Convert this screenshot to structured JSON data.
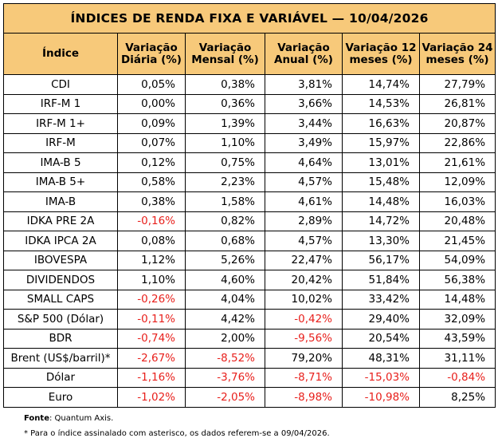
{
  "title": "ÍNDICES DE RENDA FIXA E VARIÁVEL — 10/04/2026",
  "columns": [
    "Índice",
    "Variação Diária (%)",
    "Variação Mensal (%)",
    "Variação Anual (%)",
    "Variação 12 meses (%)",
    "Variação 24 meses (%)"
  ],
  "rows": [
    {
      "name": "CDI",
      "values": [
        "0,05%",
        "0,38%",
        "3,81%",
        "14,74%",
        "27,79%"
      ]
    },
    {
      "name": "IRF-M 1",
      "values": [
        "0,00%",
        "0,36%",
        "3,66%",
        "14,53%",
        "26,81%"
      ]
    },
    {
      "name": "IRF-M 1+",
      "values": [
        "0,09%",
        "1,39%",
        "3,44%",
        "16,63%",
        "20,87%"
      ]
    },
    {
      "name": "IRF-M",
      "values": [
        "0,07%",
        "1,10%",
        "3,49%",
        "15,97%",
        "22,86%"
      ]
    },
    {
      "name": "IMA-B 5",
      "values": [
        "0,12%",
        "0,75%",
        "4,64%",
        "13,01%",
        "21,61%"
      ]
    },
    {
      "name": "IMA-B 5+",
      "values": [
        "0,58%",
        "2,23%",
        "4,57%",
        "15,48%",
        "12,09%"
      ]
    },
    {
      "name": "IMA-B",
      "values": [
        "0,38%",
        "1,58%",
        "4,61%",
        "14,48%",
        "16,03%"
      ]
    },
    {
      "name": "IDKA PRE 2A",
      "values": [
        "-0,16%",
        "0,82%",
        "2,89%",
        "14,72%",
        "20,48%"
      ]
    },
    {
      "name": "IDKA IPCA 2A",
      "values": [
        "0,08%",
        "0,68%",
        "4,57%",
        "13,30%",
        "21,45%"
      ]
    },
    {
      "name": "IBOVESPA",
      "values": [
        "1,12%",
        "5,26%",
        "22,47%",
        "56,17%",
        "54,09%"
      ]
    },
    {
      "name": "DIVIDENDOS",
      "values": [
        "1,10%",
        "4,60%",
        "20,42%",
        "51,84%",
        "56,38%"
      ]
    },
    {
      "name": "SMALL CAPS",
      "values": [
        "-0,26%",
        "4,04%",
        "10,02%",
        "33,42%",
        "14,48%"
      ]
    },
    {
      "name": "S&P 500 (Dólar)",
      "values": [
        "-0,11%",
        "4,42%",
        "-0,42%",
        "29,40%",
        "32,09%"
      ]
    },
    {
      "name": "BDR",
      "values": [
        "-0,74%",
        "2,00%",
        "-9,56%",
        "20,54%",
        "43,59%"
      ]
    },
    {
      "name": "Brent (US$/barril)*",
      "values": [
        "-2,67%",
        "-8,52%",
        "79,20%",
        "48,31%",
        "31,11%"
      ]
    },
    {
      "name": "Dólar",
      "values": [
        "-1,16%",
        "-3,76%",
        "-8,71%",
        "-15,03%",
        "-0,84%"
      ]
    },
    {
      "name": "Euro",
      "values": [
        "-1,02%",
        "-2,05%",
        "-8,98%",
        "-10,98%",
        "8,25%"
      ]
    }
  ],
  "footer": {
    "source_label": "Fonte",
    "source_text": ": Quantum Axis.",
    "note": "* Para o índice assinalado com asterisco, os dados referem-se a 09/04/2026."
  },
  "colors": {
    "header_bg": "#f7c97a",
    "negative": "#e8201c",
    "border": "#000000"
  }
}
